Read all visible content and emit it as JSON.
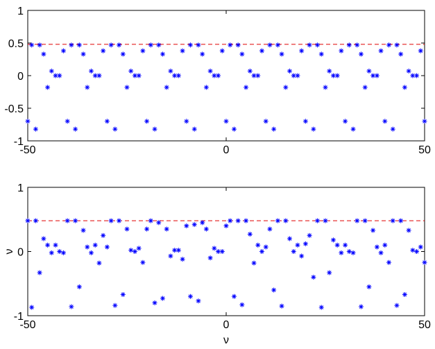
{
  "chart_data": [
    {
      "type": "scatter",
      "marker_color": "#0000ff",
      "hline": 0.48,
      "hline_color": "#e00000",
      "xlim": [
        -50,
        50
      ],
      "ylim": [
        -1,
        1
      ],
      "xticks": [
        -50,
        0,
        50
      ],
      "yticks": [
        -1,
        -0.5,
        0,
        0.5,
        1
      ],
      "grid": false,
      "x": [
        -50,
        -49,
        -48,
        -47,
        -46,
        -45,
        -44,
        -43,
        -42,
        -41,
        -40,
        -39,
        -38,
        -37,
        -36,
        -35,
        -34,
        -33,
        -32,
        -31,
        -30,
        -29,
        -28,
        -27,
        -26,
        -25,
        -24,
        -23,
        -22,
        -21,
        -20,
        -19,
        -18,
        -17,
        -16,
        -15,
        -14,
        -13,
        -12,
        -11,
        -10,
        -9,
        -8,
        -7,
        -6,
        -5,
        -4,
        -3,
        -2,
        -1,
        0,
        1,
        2,
        3,
        4,
        5,
        6,
        7,
        8,
        9,
        10,
        11,
        12,
        13,
        14,
        15,
        16,
        17,
        18,
        19,
        20,
        21,
        22,
        23,
        24,
        25,
        26,
        27,
        28,
        29,
        30,
        31,
        32,
        33,
        34,
        35,
        36,
        37,
        38,
        39,
        40,
        41,
        42,
        43,
        44,
        45,
        46,
        47,
        48,
        49,
        50
      ],
      "values": [
        -0.7,
        0.47,
        -0.82,
        0.47,
        0.33,
        -0.18,
        0.07,
        0,
        0,
        0.38,
        -0.7,
        0.47,
        -0.82,
        0.47,
        0.33,
        -0.18,
        0.07,
        0,
        0,
        0.38,
        -0.7,
        0.47,
        -0.82,
        0.47,
        0.33,
        -0.18,
        0.07,
        0,
        0,
        0.38,
        -0.7,
        0.47,
        -0.82,
        0.47,
        0.33,
        -0.18,
        0.07,
        0,
        0,
        0.38,
        -0.7,
        0.47,
        -0.82,
        0.47,
        0.33,
        -0.18,
        0.07,
        0,
        0,
        0.38,
        -0.7,
        0.47,
        -0.82,
        0.47,
        0.33,
        -0.18,
        0.07,
        0,
        0,
        0.38,
        -0.7,
        0.47,
        -0.82,
        0.47,
        0.33,
        -0.18,
        0.07,
        0,
        0,
        0.38,
        -0.7,
        0.47,
        -0.82,
        0.47,
        0.33,
        -0.18,
        0.07,
        0,
        0,
        0.38,
        -0.7,
        0.47,
        -0.82,
        0.47,
        0.33,
        -0.18,
        0.07,
        0,
        0,
        0.38,
        -0.7,
        0.47,
        -0.82,
        0.47,
        0.33,
        -0.18,
        0.07,
        0,
        0,
        0.38,
        -0.7
      ]
    },
    {
      "type": "scatter",
      "marker_color": "#0000ff",
      "hline": 0.48,
      "hline_color": "#e00000",
      "xlabel": "ν",
      "ylabel": "ν",
      "xlim": [
        -50,
        50
      ],
      "ylim": [
        -1,
        1
      ],
      "xticks": [
        -50,
        0,
        50
      ],
      "yticks": [
        -1,
        0,
        1
      ],
      "grid": false,
      "x": [
        -50,
        -49,
        -48,
        -47,
        -46,
        -45,
        -44,
        -43,
        -42,
        -41,
        -40,
        -39,
        -38,
        -37,
        -36,
        -35,
        -34,
        -33,
        -32,
        -31,
        -30,
        -29,
        -28,
        -27,
        -26,
        -25,
        -24,
        -23,
        -22,
        -21,
        -20,
        -19,
        -18,
        -17,
        -16,
        -15,
        -14,
        -13,
        -12,
        -11,
        -10,
        -9,
        -8,
        -7,
        -6,
        -5,
        -4,
        -3,
        -2,
        -1,
        0,
        1,
        2,
        3,
        4,
        5,
        6,
        7,
        8,
        9,
        10,
        11,
        12,
        13,
        14,
        15,
        16,
        17,
        18,
        19,
        20,
        21,
        22,
        23,
        24,
        25,
        26,
        27,
        28,
        29,
        30,
        31,
        32,
        33,
        34,
        35,
        36,
        37,
        38,
        39,
        40,
        41,
        42,
        43,
        44,
        45,
        46,
        47,
        48,
        49,
        50
      ],
      "values": [
        0.48,
        -0.87,
        0.48,
        -0.33,
        0.2,
        0.1,
        -0.02,
        0.1,
        0,
        -0.02,
        0.48,
        -0.86,
        0.48,
        -0.55,
        0.33,
        0.07,
        -0.02,
        0.1,
        -0.18,
        0.25,
        0.07,
        0.48,
        -0.84,
        0.48,
        -0.67,
        0.35,
        0.02,
        0,
        0.05,
        -0.17,
        0.35,
        0.48,
        -0.8,
        0.45,
        -0.73,
        0.35,
        -0.07,
        0.02,
        0.02,
        -0.12,
        0.4,
        -0.7,
        0.42,
        -0.77,
        0.45,
        0.35,
        -0.1,
        0.05,
        0,
        0,
        0.4,
        0.48,
        -0.7,
        0.48,
        -0.83,
        0.48,
        0.27,
        -0.18,
        0.1,
        0,
        0.07,
        0.35,
        -0.6,
        0.48,
        -0.85,
        0.48,
        0.2,
        0,
        0.1,
        -0.07,
        0.12,
        0.25,
        -0.4,
        0.48,
        -0.87,
        0.48,
        -0.33,
        0.18,
        0.1,
        -0.02,
        0.1,
        0,
        -0.02,
        0.48,
        -0.86,
        0.48,
        -0.55,
        0.33,
        0.07,
        -0.02,
        0.1,
        -0.17,
        0.48,
        -0.84,
        0.48,
        -0.67,
        0.33,
        0.02,
        0,
        0.07,
        -0.17
      ]
    }
  ]
}
